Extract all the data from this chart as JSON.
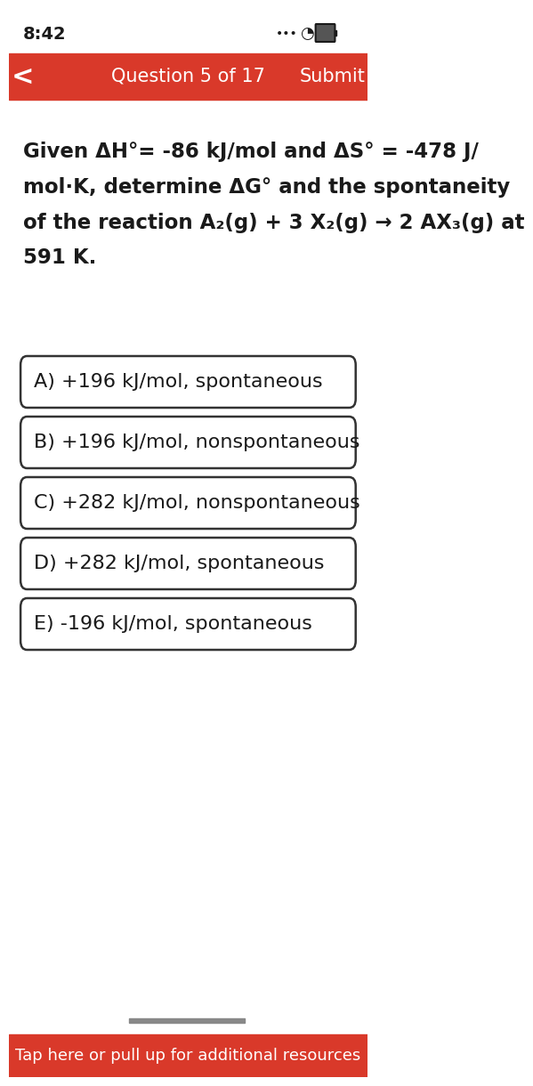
{
  "status_time": "8:42",
  "header_bg": "#d9392a",
  "header_text": "Question 5 of 17",
  "header_submit": "Submit",
  "question_text_line1": "Given ΔH°= -86 kJ/mol and ΔS° = -478 J/",
  "question_text_line2": "mol·K, determine ΔG° and the spontaneity",
  "question_text_line3": "of the reaction A₂(g) + 3 X₂(g) → 2 AX₃(g) at",
  "question_text_line4": "591 K.",
  "options": [
    "A) +196 kJ/mol, spontaneous",
    "B) +196 kJ/mol, nonspontaneous",
    "C) +282 kJ/mol, nonspontaneous",
    "D) +282 kJ/mol, spontaneous",
    "E) -196 kJ/mol, spontaneous"
  ],
  "footer_text": "Tap here or pull up for additional resources",
  "footer_bg": "#d9392a",
  "bg_color": "#ffffff",
  "text_color": "#1a1a1a",
  "option_border_color": "#333333",
  "option_bg": "#ffffff"
}
